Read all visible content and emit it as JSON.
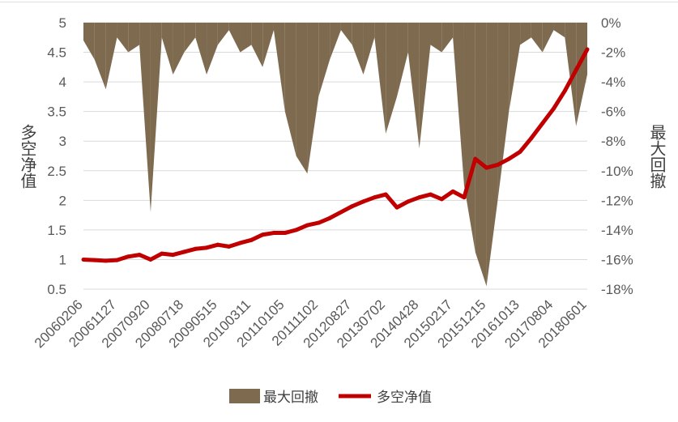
{
  "chart_data": {
    "type": "line",
    "title": "",
    "xlabel": "",
    "y_left": {
      "label": "多空净值",
      "ylim": [
        0.5,
        5
      ],
      "ticks": [
        "0.5",
        "1",
        "1.5",
        "2",
        "2.5",
        "3",
        "3.5",
        "4",
        "4.5",
        "5"
      ]
    },
    "y_right": {
      "label": "最大回撤",
      "ylim": [
        -0.18,
        0
      ],
      "ticks": [
        "-18%",
        "-16%",
        "-14%",
        "-12%",
        "-10%",
        "-8%",
        "-6%",
        "-4%",
        "-2%",
        "0%"
      ]
    },
    "x_tick_labels": [
      "20060206",
      "20061127",
      "20070920",
      "20080718",
      "20090515",
      "20100311",
      "20110105",
      "20111102",
      "20120827",
      "20130702",
      "20140428",
      "20150217",
      "20151215",
      "20161013",
      "20170804",
      "20180601"
    ],
    "grid": true,
    "legend_position": "bottom",
    "series": [
      {
        "name": "最大回撤",
        "kind": "area",
        "axis": "right",
        "color": "#7e6a4f",
        "x": [
          "20060206",
          "20060501",
          "20060801",
          "20061127",
          "20070301",
          "20070601",
          "20070920",
          "20071201",
          "20080301",
          "20080718",
          "20081101",
          "20090201",
          "20090515",
          "20090801",
          "20091201",
          "20100311",
          "20100601",
          "20100901",
          "20110105",
          "20110401",
          "20110701",
          "20111102",
          "20120201",
          "20120501",
          "20120827",
          "20121201",
          "20130301",
          "20130702",
          "20131101",
          "20140201",
          "20140428",
          "20140801",
          "20141101",
          "20150217",
          "20150601",
          "20150901",
          "20151215",
          "20160301",
          "20160601",
          "20161013",
          "20170101",
          "20170401",
          "20170804",
          "20171101",
          "20180201",
          "20180601"
        ],
        "values": [
          -0.012,
          -0.025,
          -0.045,
          -0.01,
          -0.02,
          -0.015,
          -0.128,
          -0.01,
          -0.035,
          -0.02,
          -0.01,
          -0.035,
          -0.015,
          -0.005,
          -0.02,
          -0.015,
          -0.03,
          -0.005,
          -0.06,
          -0.09,
          -0.102,
          -0.05,
          -0.025,
          -0.005,
          -0.015,
          -0.035,
          -0.01,
          -0.075,
          -0.05,
          -0.02,
          -0.085,
          -0.015,
          -0.02,
          -0.01,
          -0.11,
          -0.155,
          -0.178,
          -0.12,
          -0.06,
          -0.015,
          -0.01,
          -0.02,
          -0.005,
          -0.01,
          -0.07,
          -0.035
        ]
      },
      {
        "name": "多空净值",
        "kind": "line",
        "axis": "left",
        "color": "#c00000",
        "x": [
          "20060206",
          "20060501",
          "20060801",
          "20061127",
          "20070301",
          "20070601",
          "20070920",
          "20071201",
          "20080301",
          "20080718",
          "20081101",
          "20090201",
          "20090515",
          "20090801",
          "20091201",
          "20100311",
          "20100601",
          "20100901",
          "20110105",
          "20110401",
          "20110701",
          "20111102",
          "20120201",
          "20120501",
          "20120827",
          "20121201",
          "20130301",
          "20130702",
          "20131101",
          "20140201",
          "20140428",
          "20140801",
          "20141101",
          "20150217",
          "20150601",
          "20150901",
          "20151215",
          "20160301",
          "20160601",
          "20161013",
          "20170101",
          "20170401",
          "20170804",
          "20171101",
          "20180201",
          "20180601"
        ],
        "values": [
          1.0,
          0.99,
          0.98,
          0.99,
          1.05,
          1.08,
          1.0,
          1.1,
          1.08,
          1.13,
          1.18,
          1.2,
          1.25,
          1.22,
          1.28,
          1.33,
          1.42,
          1.45,
          1.45,
          1.5,
          1.58,
          1.62,
          1.7,
          1.8,
          1.9,
          1.98,
          2.05,
          2.1,
          1.88,
          1.98,
          2.05,
          2.1,
          2.02,
          2.15,
          2.05,
          2.7,
          2.55,
          2.6,
          2.7,
          2.82,
          3.05,
          3.3,
          3.55,
          3.85,
          4.2,
          4.55
        ]
      }
    ]
  }
}
